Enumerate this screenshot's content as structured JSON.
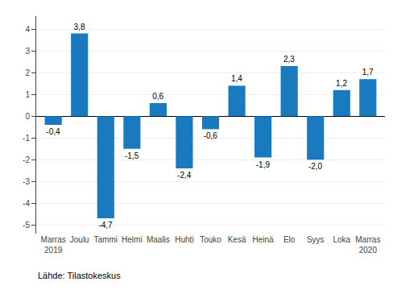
{
  "chart_data": {
    "type": "bar",
    "categories": [
      "Marras\n2019",
      "Joulu",
      "Tammi",
      "Helmi",
      "Maalis",
      "Huhti",
      "Touko",
      "Kesä",
      "Heinä",
      "Elo",
      "Syys",
      "Loka",
      "Marras\n2020"
    ],
    "values": [
      -0.4,
      3.8,
      -4.7,
      -1.5,
      0.6,
      -2.4,
      -0.6,
      1.4,
      -1.9,
      2.3,
      -2.0,
      1.2,
      1.7
    ],
    "value_labels": [
      "-0,4",
      "3,8",
      "-4,7",
      "-1,5",
      "0,6",
      "-2,4",
      "-0,6",
      "1,4",
      "-1,9",
      "2,3",
      "-2,0",
      "1,2",
      "1,7"
    ],
    "data_labels": true,
    "color": "#1a7abf",
    "ylim": [
      -5.4,
      4.6
    ],
    "yticks": [
      -5,
      -4,
      -3,
      -2,
      -1,
      0,
      1,
      2,
      3,
      4
    ],
    "grid": true,
    "annotations": [
      "Lähde: Tilastokeskus"
    ]
  }
}
